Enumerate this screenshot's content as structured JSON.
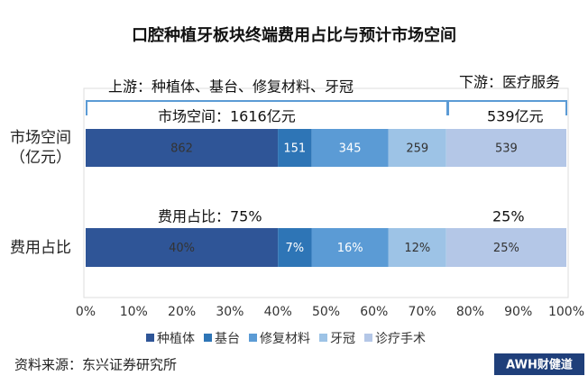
{
  "chart_data": {
    "type": "stacked_percent_bar",
    "title": "口腔种植牙板块终端费用占比与预计市场空间",
    "categories": [
      "市场空间（亿元）",
      "费用占比"
    ],
    "series": [
      {
        "name": "种植体",
        "color": "#2f5597",
        "values": [
          862,
          40
        ],
        "value_labels": [
          "862",
          "40%"
        ]
      },
      {
        "name": "基台",
        "color": "#2e75b6",
        "values": [
          151,
          7
        ],
        "value_labels": [
          "151",
          "7%"
        ]
      },
      {
        "name": "修复材料",
        "color": "#5b9bd5",
        "values": [
          345,
          16
        ],
        "value_labels": [
          "345",
          "16%"
        ]
      },
      {
        "name": "牙冠",
        "color": "#9dc3e6",
        "values": [
          259,
          12
        ],
        "value_labels": [
          "259",
          "12%"
        ]
      },
      {
        "name": "诊疗手术",
        "color": "#b4c7e7",
        "values": [
          539,
          25
        ],
        "value_labels": [
          "539",
          "25%"
        ]
      }
    ],
    "xlim": [
      0,
      100
    ],
    "xticks": [
      {
        "value": 0,
        "label": "0%"
      },
      {
        "value": 10,
        "label": "10%"
      },
      {
        "value": 20,
        "label": "20%"
      },
      {
        "value": 30,
        "label": "30%"
      },
      {
        "value": 40,
        "label": "40%"
      },
      {
        "value": 50,
        "label": "50%"
      },
      {
        "value": 60,
        "label": "60%"
      },
      {
        "value": 70,
        "label": "70%"
      },
      {
        "value": 80,
        "label": "80%"
      },
      {
        "value": 90,
        "label": "90%"
      },
      {
        "value": 100,
        "label": "100%"
      }
    ],
    "annotations": [
      "上游：种植体、基台、修复材料、牙冠",
      "下游：医疗服务",
      "市场空间：1616亿元",
      "539亿元",
      "费用占比：75%",
      "25%"
    ],
    "source": "资料来源：东兴证券研究所",
    "watermark": "AWH财健道",
    "legend": "bottom"
  }
}
